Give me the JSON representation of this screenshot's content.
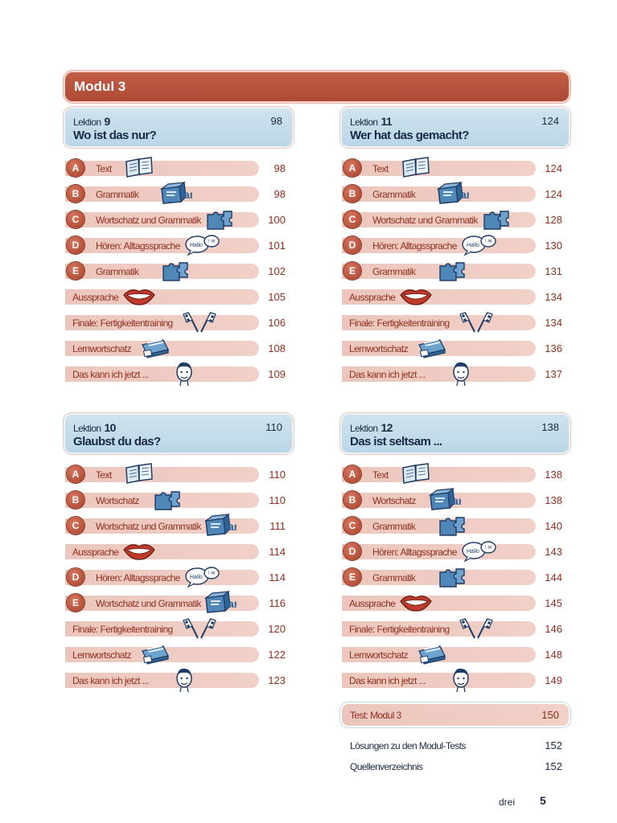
{
  "modul_title": "Modul 3",
  "lektion_word": "Lektion",
  "colors": {
    "accent": "#b5523c",
    "header_blue": "#c4dded",
    "row_pink": "#efcbc2",
    "text_red": "#8f2f1e"
  },
  "columns": [
    {
      "lessons": [
        {
          "number": "9",
          "title": "Wo ist das nur?",
          "page": "98",
          "rows": [
            {
              "badge": "A",
              "label": "Text",
              "page": "98",
              "icon": "book-icon"
            },
            {
              "badge": "B",
              "label": "Grammatik",
              "page": "98",
              "icon": "grammar-box-icon"
            },
            {
              "badge": "C",
              "label": "Wortschatz und Grammatik",
              "page": "100",
              "icon": "puzzle-icon"
            },
            {
              "badge": "D",
              "label": "Hören: Alltagssprache",
              "page": "101",
              "icon": "speech-bubbles-icon"
            },
            {
              "badge": "E",
              "label": "Grammatik",
              "page": "102",
              "icon": "puzzle-icon"
            },
            {
              "badge": "",
              "label": "Aussprache",
              "page": "105",
              "icon": "mouth-icon"
            },
            {
              "badge": "",
              "label": "Finale: Fertigkeitentraining",
              "page": "106",
              "icon": "checkered-flags-icon"
            },
            {
              "badge": "",
              "label": "Lernwortschatz",
              "page": "108",
              "icon": "card-box-icon"
            },
            {
              "badge": "",
              "label": "Das kann ich jetzt ...",
              "page": "109",
              "icon": "face-icon"
            }
          ]
        },
        {
          "number": "10",
          "title": "Glaubst du das?",
          "page": "110",
          "rows": [
            {
              "badge": "A",
              "label": "Text",
              "page": "110",
              "icon": "book-icon"
            },
            {
              "badge": "B",
              "label": "Wortschatz",
              "page": "110",
              "icon": "puzzle-icon"
            },
            {
              "badge": "C",
              "label": "Wortschatz und Grammatik",
              "page": "111",
              "icon": "grammar-box-icon"
            },
            {
              "badge": "",
              "label": "Aussprache",
              "page": "114",
              "icon": "mouth-icon"
            },
            {
              "badge": "D",
              "label": "Hören: Alltagssprache",
              "page": "114",
              "icon": "speech-bubbles-icon"
            },
            {
              "badge": "E",
              "label": "Wortschatz und Grammatik",
              "page": "116",
              "icon": "grammar-box-icon"
            },
            {
              "badge": "",
              "label": "Finale: Fertigkeitentraining",
              "page": "120",
              "icon": "checkered-flags-icon"
            },
            {
              "badge": "",
              "label": "Lernwortschatz",
              "page": "122",
              "icon": "card-box-icon"
            },
            {
              "badge": "",
              "label": "Das kann ich jetzt ...",
              "page": "123",
              "icon": "face-icon"
            }
          ]
        }
      ]
    },
    {
      "lessons": [
        {
          "number": "11",
          "title": "Wer hat das gemacht?",
          "page": "124",
          "rows": [
            {
              "badge": "A",
              "label": "Text",
              "page": "124",
              "icon": "book-icon"
            },
            {
              "badge": "B",
              "label": "Grammatik",
              "page": "124",
              "icon": "grammar-box-icon"
            },
            {
              "badge": "C",
              "label": "Wortschatz und Grammatik",
              "page": "128",
              "icon": "puzzle-icon"
            },
            {
              "badge": "D",
              "label": "Hören: Alltagssprache",
              "page": "130",
              "icon": "speech-bubbles-icon"
            },
            {
              "badge": "E",
              "label": "Grammatik",
              "page": "131",
              "icon": "puzzle-icon"
            },
            {
              "badge": "",
              "label": "Aussprache",
              "page": "134",
              "icon": "mouth-icon"
            },
            {
              "badge": "",
              "label": "Finale: Fertigkeitentraining",
              "page": "134",
              "icon": "checkered-flags-icon"
            },
            {
              "badge": "",
              "label": "Lernwortschatz",
              "page": "136",
              "icon": "card-box-icon"
            },
            {
              "badge": "",
              "label": "Das kann ich jetzt ...",
              "page": "137",
              "icon": "face-icon"
            }
          ]
        },
        {
          "number": "12",
          "title": "Das ist seltsam ...",
          "page": "138",
          "rows": [
            {
              "badge": "A",
              "label": "Text",
              "page": "138",
              "icon": "book-icon"
            },
            {
              "badge": "B",
              "label": "Wortschatz",
              "page": "138",
              "icon": "grammar-box-icon"
            },
            {
              "badge": "C",
              "label": "Grammatik",
              "page": "140",
              "icon": "puzzle-icon"
            },
            {
              "badge": "D",
              "label": "Hören: Alltagssprache",
              "page": "143",
              "icon": "speech-bubbles-icon"
            },
            {
              "badge": "E",
              "label": "Grammatik",
              "page": "144",
              "icon": "puzzle-icon"
            },
            {
              "badge": "",
              "label": "Aussprache",
              "page": "145",
              "icon": "mouth-icon"
            },
            {
              "badge": "",
              "label": "Finale: Fertigkeitentraining",
              "page": "146",
              "icon": "checkered-flags-icon"
            },
            {
              "badge": "",
              "label": "Lernwortschatz",
              "page": "148",
              "icon": "card-box-icon"
            },
            {
              "badge": "",
              "label": "Das kann ich jetzt ...",
              "page": "149",
              "icon": "face-icon"
            }
          ]
        }
      ]
    }
  ],
  "test": {
    "label": "Test: Modul 3",
    "page": "150"
  },
  "extras": [
    {
      "label": "Lösungen zu den Modul-Tests",
      "page": "152"
    },
    {
      "label": "Quellenverzeichnis",
      "page": "152"
    }
  ],
  "footer": {
    "word": "drei",
    "page": "5"
  },
  "speech_bubble_text": "Hallo"
}
